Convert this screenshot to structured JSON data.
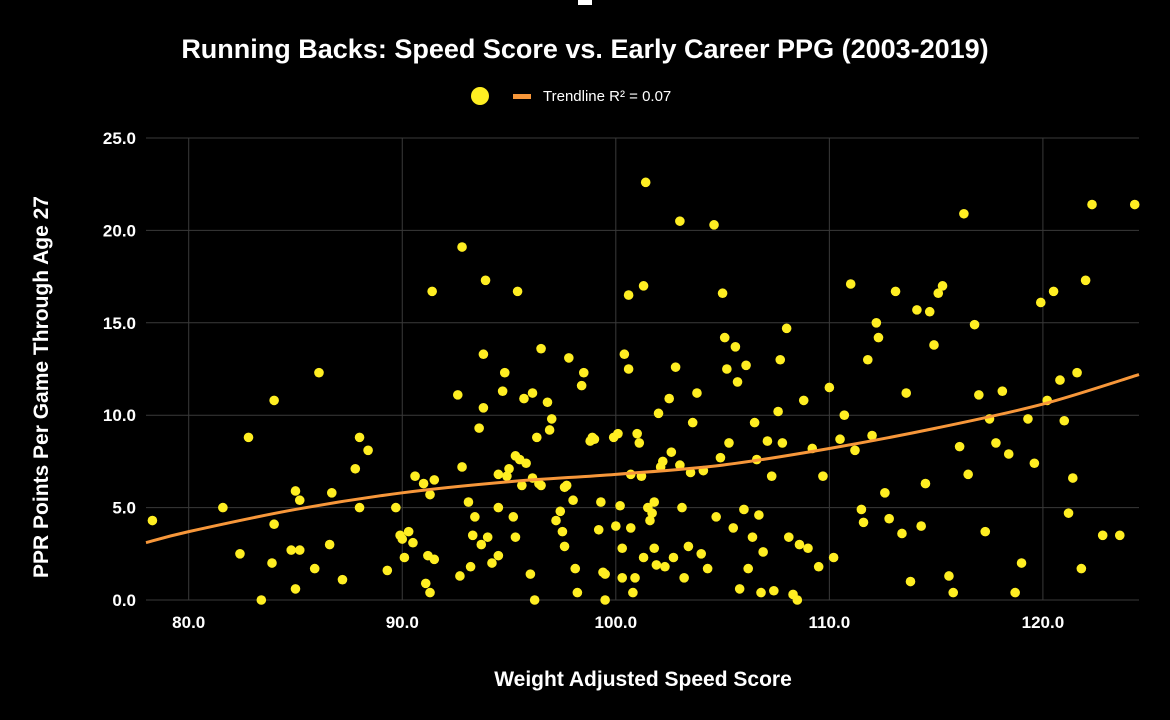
{
  "chart_data": {
    "type": "scatter",
    "title": "Running Backs: Speed Score vs. Early Career PPG (2003-2019)",
    "xlabel": "Weight Adjusted Speed Score",
    "ylabel": "PPR Points Per Game Through Age 27",
    "xlim": [
      78,
      124.5
    ],
    "ylim": [
      0,
      25
    ],
    "xticks": [
      "80.0",
      "90.0",
      "100.0",
      "110.0",
      "120.0"
    ],
    "xtick_values": [
      80,
      90,
      100,
      110,
      120
    ],
    "yticks": [
      "0.0",
      "5.0",
      "10.0",
      "15.0",
      "20.0",
      "25.0"
    ],
    "ytick_values": [
      0,
      5,
      10,
      15,
      20,
      25
    ],
    "grid": true,
    "legend": {
      "position": "top-center",
      "marker_label": "",
      "trend_label": "Trendline R² = 0.07"
    },
    "colors": {
      "points": "#ffee22",
      "trendline": "#f7973a",
      "grid": "#3a3a3a",
      "background": "#000000"
    },
    "series": [
      {
        "name": "Running Backs",
        "points": [
          [
            78.3,
            4.3
          ],
          [
            81.6,
            5.0
          ],
          [
            82.4,
            2.5
          ],
          [
            82.8,
            8.8
          ],
          [
            83.4,
            0.0
          ],
          [
            83.9,
            2.0
          ],
          [
            84.0,
            4.1
          ],
          [
            84.0,
            10.8
          ],
          [
            84.8,
            2.7
          ],
          [
            85.0,
            0.6
          ],
          [
            85.0,
            5.9
          ],
          [
            85.2,
            5.4
          ],
          [
            85.2,
            2.7
          ],
          [
            85.9,
            1.7
          ],
          [
            86.1,
            12.3
          ],
          [
            86.6,
            3.0
          ],
          [
            86.7,
            5.8
          ],
          [
            87.2,
            1.1
          ],
          [
            87.8,
            7.1
          ],
          [
            88.0,
            5.0
          ],
          [
            88.0,
            8.8
          ],
          [
            88.4,
            8.1
          ],
          [
            89.3,
            1.6
          ],
          [
            89.7,
            5.0
          ],
          [
            89.9,
            3.5
          ],
          [
            90.0,
            3.3
          ],
          [
            90.1,
            2.3
          ],
          [
            90.3,
            3.7
          ],
          [
            90.5,
            3.1
          ],
          [
            90.6,
            6.7
          ],
          [
            91.0,
            6.3
          ],
          [
            91.1,
            0.9
          ],
          [
            91.2,
            2.4
          ],
          [
            91.3,
            5.7
          ],
          [
            91.4,
            16.7
          ],
          [
            91.5,
            6.5
          ],
          [
            91.3,
            0.4
          ],
          [
            91.5,
            2.2
          ],
          [
            92.6,
            11.1
          ],
          [
            92.7,
            1.3
          ],
          [
            92.8,
            19.1
          ],
          [
            92.8,
            7.2
          ],
          [
            93.1,
            5.3
          ],
          [
            93.2,
            1.8
          ],
          [
            93.3,
            3.5
          ],
          [
            93.4,
            4.5
          ],
          [
            93.6,
            9.3
          ],
          [
            93.7,
            3.0
          ],
          [
            93.8,
            10.4
          ],
          [
            93.8,
            13.3
          ],
          [
            93.9,
            17.3
          ],
          [
            94.0,
            3.4
          ],
          [
            94.2,
            2.0
          ],
          [
            94.5,
            5.0
          ],
          [
            94.5,
            2.4
          ],
          [
            94.5,
            6.8
          ],
          [
            94.7,
            11.3
          ],
          [
            94.8,
            12.3
          ],
          [
            94.9,
            6.7
          ],
          [
            95.0,
            7.1
          ],
          [
            95.2,
            4.5
          ],
          [
            95.3,
            7.8
          ],
          [
            95.3,
            3.4
          ],
          [
            95.4,
            16.7
          ],
          [
            95.5,
            7.6
          ],
          [
            95.6,
            6.2
          ],
          [
            95.7,
            10.9
          ],
          [
            95.8,
            7.4
          ],
          [
            96.0,
            1.4
          ],
          [
            96.1,
            6.6
          ],
          [
            96.1,
            11.2
          ],
          [
            96.2,
            0.0
          ],
          [
            96.3,
            8.8
          ],
          [
            96.4,
            6.3
          ],
          [
            96.5,
            6.2
          ],
          [
            96.5,
            13.6
          ],
          [
            96.8,
            10.7
          ],
          [
            96.9,
            9.2
          ],
          [
            97.0,
            9.8
          ],
          [
            97.2,
            4.3
          ],
          [
            97.4,
            4.8
          ],
          [
            97.5,
            3.7
          ],
          [
            97.6,
            6.1
          ],
          [
            97.6,
            2.9
          ],
          [
            97.7,
            6.2
          ],
          [
            97.8,
            13.1
          ],
          [
            98.0,
            5.4
          ],
          [
            98.1,
            1.7
          ],
          [
            98.2,
            0.4
          ],
          [
            98.4,
            11.6
          ],
          [
            98.5,
            12.3
          ],
          [
            98.8,
            8.6
          ],
          [
            98.9,
            8.8
          ],
          [
            99.0,
            8.7
          ],
          [
            99.2,
            3.8
          ],
          [
            99.3,
            5.3
          ],
          [
            99.4,
            1.5
          ],
          [
            99.5,
            1.4
          ],
          [
            99.5,
            0.0
          ],
          [
            99.9,
            8.8
          ],
          [
            100.0,
            4.0
          ],
          [
            100.1,
            9.0
          ],
          [
            100.2,
            5.1
          ],
          [
            100.3,
            1.2
          ],
          [
            100.3,
            2.8
          ],
          [
            100.4,
            13.3
          ],
          [
            100.6,
            16.5
          ],
          [
            100.6,
            12.5
          ],
          [
            100.7,
            6.8
          ],
          [
            100.7,
            3.9
          ],
          [
            100.8,
            0.4
          ],
          [
            100.9,
            1.2
          ],
          [
            101.0,
            9.0
          ],
          [
            101.1,
            8.5
          ],
          [
            101.2,
            6.7
          ],
          [
            101.3,
            17.0
          ],
          [
            101.3,
            2.3
          ],
          [
            101.4,
            22.6
          ],
          [
            101.5,
            5.0
          ],
          [
            101.6,
            4.3
          ],
          [
            101.7,
            4.7
          ],
          [
            101.8,
            5.3
          ],
          [
            101.8,
            2.8
          ],
          [
            101.9,
            1.9
          ],
          [
            102.0,
            10.1
          ],
          [
            102.1,
            7.2
          ],
          [
            102.2,
            7.5
          ],
          [
            102.3,
            1.8
          ],
          [
            102.5,
            10.9
          ],
          [
            102.6,
            8.0
          ],
          [
            102.7,
            2.3
          ],
          [
            102.8,
            12.6
          ],
          [
            103.0,
            7.3
          ],
          [
            103.0,
            20.5
          ],
          [
            103.1,
            5.0
          ],
          [
            103.2,
            1.2
          ],
          [
            103.4,
            2.9
          ],
          [
            103.5,
            6.9
          ],
          [
            103.6,
            9.6
          ],
          [
            103.8,
            11.2
          ],
          [
            104.0,
            2.5
          ],
          [
            104.1,
            7.0
          ],
          [
            104.3,
            1.7
          ],
          [
            104.6,
            20.3
          ],
          [
            104.7,
            4.5
          ],
          [
            104.9,
            7.7
          ],
          [
            105.0,
            16.6
          ],
          [
            105.1,
            14.2
          ],
          [
            105.2,
            12.5
          ],
          [
            105.3,
            8.5
          ],
          [
            105.5,
            3.9
          ],
          [
            105.6,
            13.7
          ],
          [
            105.7,
            11.8
          ],
          [
            105.8,
            0.6
          ],
          [
            106.0,
            4.9
          ],
          [
            106.1,
            12.7
          ],
          [
            106.2,
            1.7
          ],
          [
            106.4,
            3.4
          ],
          [
            106.5,
            9.6
          ],
          [
            106.6,
            7.6
          ],
          [
            106.7,
            4.6
          ],
          [
            106.8,
            0.4
          ],
          [
            106.9,
            2.6
          ],
          [
            107.1,
            8.6
          ],
          [
            107.3,
            6.7
          ],
          [
            107.4,
            0.5
          ],
          [
            107.6,
            10.2
          ],
          [
            107.7,
            13.0
          ],
          [
            107.8,
            8.5
          ],
          [
            108.0,
            14.7
          ],
          [
            108.1,
            3.4
          ],
          [
            108.3,
            0.3
          ],
          [
            108.5,
            0.0
          ],
          [
            108.6,
            3.0
          ],
          [
            108.8,
            10.8
          ],
          [
            109.0,
            2.8
          ],
          [
            109.2,
            8.2
          ],
          [
            109.5,
            1.8
          ],
          [
            109.7,
            6.7
          ],
          [
            110.0,
            11.5
          ],
          [
            110.2,
            2.3
          ],
          [
            110.5,
            8.7
          ],
          [
            110.7,
            10.0
          ],
          [
            111.0,
            17.1
          ],
          [
            111.2,
            8.1
          ],
          [
            111.5,
            4.9
          ],
          [
            111.6,
            4.2
          ],
          [
            111.8,
            13.0
          ],
          [
            112.0,
            8.9
          ],
          [
            112.2,
            15.0
          ],
          [
            112.3,
            14.2
          ],
          [
            112.6,
            5.8
          ],
          [
            112.8,
            4.4
          ],
          [
            113.1,
            16.7
          ],
          [
            113.4,
            3.6
          ],
          [
            113.6,
            11.2
          ],
          [
            113.8,
            1.0
          ],
          [
            114.1,
            15.7
          ],
          [
            114.3,
            4.0
          ],
          [
            114.5,
            6.3
          ],
          [
            114.7,
            15.6
          ],
          [
            114.9,
            13.8
          ],
          [
            115.1,
            16.6
          ],
          [
            115.3,
            17.0
          ],
          [
            115.6,
            1.3
          ],
          [
            115.8,
            0.4
          ],
          [
            116.1,
            8.3
          ],
          [
            116.3,
            20.9
          ],
          [
            116.5,
            6.8
          ],
          [
            116.8,
            14.9
          ],
          [
            117.0,
            11.1
          ],
          [
            117.3,
            3.7
          ],
          [
            117.5,
            9.8
          ],
          [
            117.8,
            8.5
          ],
          [
            118.1,
            11.3
          ],
          [
            118.4,
            7.9
          ],
          [
            118.7,
            0.4
          ],
          [
            119.0,
            2.0
          ],
          [
            119.3,
            9.8
          ],
          [
            119.6,
            7.4
          ],
          [
            119.9,
            16.1
          ],
          [
            120.2,
            10.8
          ],
          [
            120.5,
            16.7
          ],
          [
            120.8,
            11.9
          ],
          [
            121.0,
            9.7
          ],
          [
            121.2,
            4.7
          ],
          [
            121.4,
            6.6
          ],
          [
            121.6,
            12.3
          ],
          [
            121.8,
            1.7
          ],
          [
            122.0,
            17.3
          ],
          [
            122.3,
            21.4
          ],
          [
            122.8,
            3.5
          ],
          [
            123.6,
            3.5
          ],
          [
            124.3,
            21.4
          ]
        ]
      }
    ],
    "trendline": {
      "name": "Trendline R² = 0.07",
      "points": [
        [
          78,
          3.1
        ],
        [
          80,
          3.7
        ],
        [
          85,
          4.9
        ],
        [
          90,
          5.8
        ],
        [
          95,
          6.4
        ],
        [
          100,
          6.8
        ],
        [
          105,
          7.3
        ],
        [
          110,
          8.2
        ],
        [
          115,
          9.3
        ],
        [
          120,
          10.6
        ],
        [
          124.5,
          12.2
        ]
      ]
    }
  }
}
